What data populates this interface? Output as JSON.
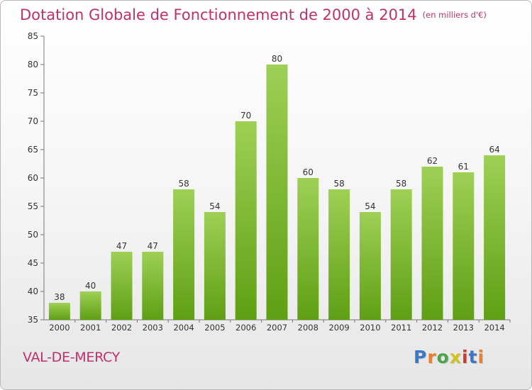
{
  "header": {
    "title": "Dotation Globale de Fonctionnement de 2000 à 2014",
    "unit": "(en milliers d'€)"
  },
  "footer": {
    "commune": "VAL-DE-MERCY",
    "logo": {
      "text": "Proxiti",
      "colors": [
        "#3a78c8",
        "#e8802a",
        "#4aa44a",
        "#d4c020",
        "#c93b3b"
      ]
    }
  },
  "chart_data": {
    "type": "bar",
    "title": "Dotation Globale de Fonctionnement de 2000 à 2014",
    "subtitle": "(en milliers d'€)",
    "xlabel": "",
    "ylabel": "",
    "categories": [
      "2000",
      "2001",
      "2002",
      "2003",
      "2004",
      "2005",
      "2006",
      "2007",
      "2008",
      "2009",
      "2010",
      "2011",
      "2012",
      "2013",
      "2014"
    ],
    "values": [
      38,
      40,
      47,
      47,
      58,
      54,
      70,
      80,
      60,
      58,
      54,
      58,
      62,
      61,
      64
    ],
    "ylim": [
      35,
      85
    ],
    "yticks": [
      35,
      40,
      45,
      50,
      55,
      60,
      65,
      70,
      75,
      80,
      85
    ],
    "grid": false,
    "data_labels": true,
    "colors": {
      "bar_top": "#9ed055",
      "bar_bottom": "#5f9f14",
      "axis": "#777777",
      "text": "#333333"
    }
  }
}
